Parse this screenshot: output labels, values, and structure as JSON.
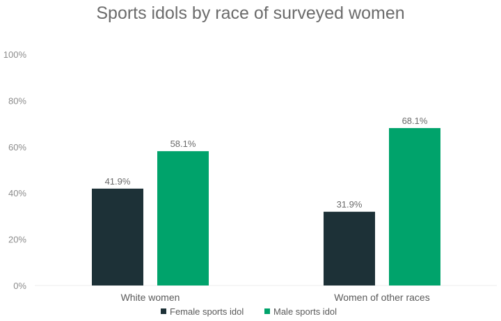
{
  "chart_data": {
    "type": "bar",
    "title": "Sports idols by race of surveyed women",
    "categories": [
      "White women",
      "Women of other races"
    ],
    "series": [
      {
        "name": "Female sports idol",
        "color": "#1d3137",
        "values": [
          41.9,
          31.9
        ],
        "labels": [
          "41.9%",
          "31.9%"
        ]
      },
      {
        "name": "Male sports idol",
        "color": "#00a36b",
        "values": [
          58.1,
          68.1
        ],
        "labels": [
          "58.1%",
          "68.1%"
        ]
      }
    ],
    "ylim": [
      0,
      100
    ],
    "yticks": [
      0,
      20,
      40,
      60,
      80,
      100
    ],
    "ytick_labels": [
      "0%",
      "20%",
      "40%",
      "60%",
      "80%",
      "100%"
    ],
    "grid": false,
    "legend_position": "bottom"
  }
}
